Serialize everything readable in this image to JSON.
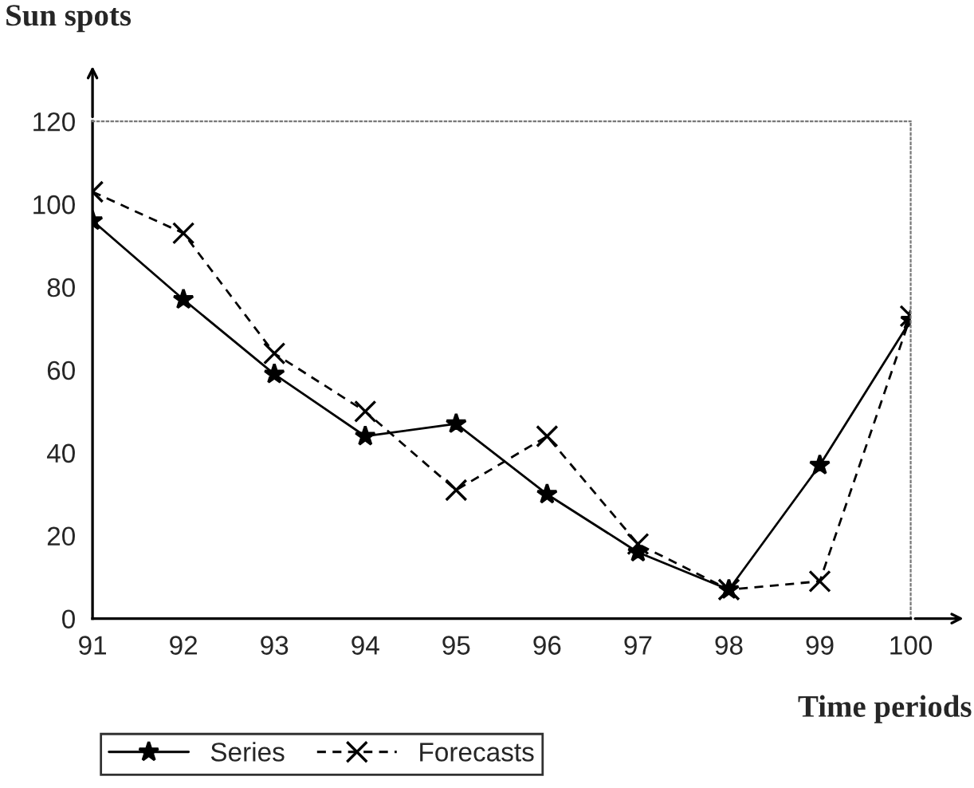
{
  "chart_data": {
    "type": "line",
    "ylabel": "Sun spots",
    "xlabel": "Time periods",
    "x": [
      91,
      92,
      93,
      94,
      95,
      96,
      97,
      98,
      99,
      100
    ],
    "xlim": [
      91,
      100
    ],
    "ylim": [
      0,
      120
    ],
    "xticks": [
      91,
      92,
      93,
      94,
      95,
      96,
      97,
      98,
      99,
      100
    ],
    "yticks": [
      0,
      20,
      40,
      60,
      80,
      100,
      120
    ],
    "series": [
      {
        "name": "Series",
        "color": "#000000",
        "marker": "star",
        "line_style": "solid",
        "values": [
          96,
          77,
          59,
          44,
          47,
          30,
          16,
          7,
          37,
          72
        ]
      },
      {
        "name": "Forecasts",
        "color": "#000000",
        "marker": "cross",
        "line_style": "dashed",
        "values": [
          103,
          93,
          64,
          50,
          31,
          44,
          18,
          7,
          9,
          73
        ]
      }
    ],
    "legend": "bottom left",
    "grid": false
  }
}
